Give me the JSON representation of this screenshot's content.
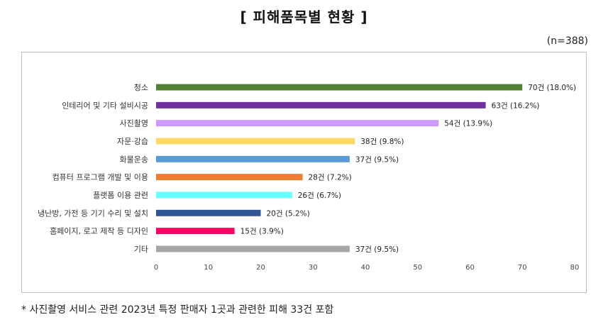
{
  "page": {
    "title": "[ 피해품목별 현황 ]",
    "sample_size": "(n=388)",
    "footnote": "* 사진촬영 서비스 관련 2023년 특정 판매자 1곳과 관련한 피해 33건 포함"
  },
  "chart_data": {
    "type": "bar",
    "orientation": "horizontal",
    "title": "[ 피해품목별 현황 ]",
    "xlabel": "",
    "ylabel": "",
    "xlim": [
      0,
      80
    ],
    "x_ticks": [
      0,
      10,
      20,
      30,
      40,
      50,
      60,
      70,
      80
    ],
    "grid": false,
    "legend": "none",
    "categories": [
      "청소",
      "인테리어 및 기타 설비시공",
      "사진촬영",
      "자문·강습",
      "화물운송",
      "컴퓨터 프로그램 개발 및 이용",
      "플랫폼 이용 관련",
      "냉난방, 가전 등 기기 수리 및 설치",
      "홈페이지, 로고 제작 등 디자인",
      "기타"
    ],
    "values": [
      70,
      63,
      54,
      38,
      37,
      28,
      26,
      20,
      15,
      37
    ],
    "data_labels": [
      "70건 (18.0%)",
      "63건 (16.2%)",
      "54건 (13.9%)",
      "38건 (9.8%)",
      "37건 (9.5%)",
      "28건 (7.2%)",
      "26건 (6.7%)",
      "20건 (5.2%)",
      "15건 (3.9%)",
      "37건 (9.5%)"
    ],
    "colors": [
      "#548235",
      "#7030a0",
      "#cc99ff",
      "#ffd966",
      "#5b9bd5",
      "#ed7d31",
      "#66ffff",
      "#2f5597",
      "#ff0066",
      "#a6a6a6"
    ]
  }
}
